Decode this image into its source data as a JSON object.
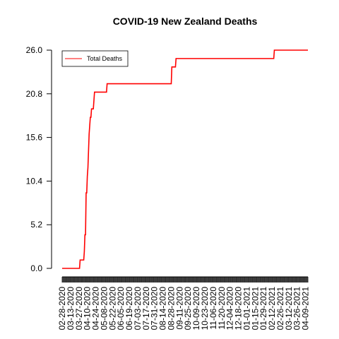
{
  "chart_data": {
    "type": "line",
    "title": "COVID-19 New Zealand Deaths",
    "xlabel": "",
    "ylabel": "",
    "ylim": [
      0,
      26
    ],
    "y_ticks": [
      "0.0",
      "5.2",
      "10.4",
      "15.6",
      "20.8",
      "26.0"
    ],
    "y_tick_values": [
      0,
      5.2,
      10.4,
      15.6,
      20.8,
      26
    ],
    "x_tick_labels": [
      "02-28-2020",
      "03-13-2020",
      "03-27-2020",
      "04-10-2020",
      "04-24-2020",
      "05-08-2020",
      "05-22-2020",
      "06-05-2020",
      "06-19-2020",
      "07-03-2020",
      "07-17-2020",
      "07-31-2020",
      "08-14-2020",
      "08-28-2020",
      "09-11-2020",
      "09-25-2020",
      "10-09-2020",
      "10-23-2020",
      "11-06-2020",
      "11-20-2020",
      "12-04-2020",
      "12-18-2020",
      "01-01-2021",
      "01-15-2021",
      "01-29-2021",
      "02-12-2021",
      "02-26-2021",
      "03-12-2021",
      "03-26-2021",
      "04-09-2021"
    ],
    "grid": false,
    "legend_position": "top-left",
    "line_color": "#ff0000",
    "series": [
      {
        "name": "Total Deaths",
        "points": [
          [
            "2020-02-28",
            0
          ],
          [
            "2020-03-28",
            0
          ],
          [
            "2020-03-29",
            1
          ],
          [
            "2020-04-04",
            1
          ],
          [
            "2020-04-05",
            2
          ],
          [
            "2020-04-06",
            4
          ],
          [
            "2020-04-07",
            4
          ],
          [
            "2020-04-08",
            9
          ],
          [
            "2020-04-09",
            9
          ],
          [
            "2020-04-10",
            11
          ],
          [
            "2020-04-11",
            12
          ],
          [
            "2020-04-12",
            14
          ],
          [
            "2020-04-13",
            16
          ],
          [
            "2020-04-14",
            17
          ],
          [
            "2020-04-15",
            18
          ],
          [
            "2020-04-16",
            18
          ],
          [
            "2020-04-17",
            19
          ],
          [
            "2020-04-20",
            19
          ],
          [
            "2020-04-21",
            20
          ],
          [
            "2020-04-22",
            21
          ],
          [
            "2020-05-12",
            21
          ],
          [
            "2020-05-13",
            22
          ],
          [
            "2020-08-28",
            22
          ],
          [
            "2020-08-29",
            24
          ],
          [
            "2020-09-04",
            24
          ],
          [
            "2020-09-05",
            25
          ],
          [
            "2021-02-15",
            25
          ],
          [
            "2021-02-16",
            26
          ],
          [
            "2021-04-13",
            26
          ]
        ]
      }
    ]
  }
}
